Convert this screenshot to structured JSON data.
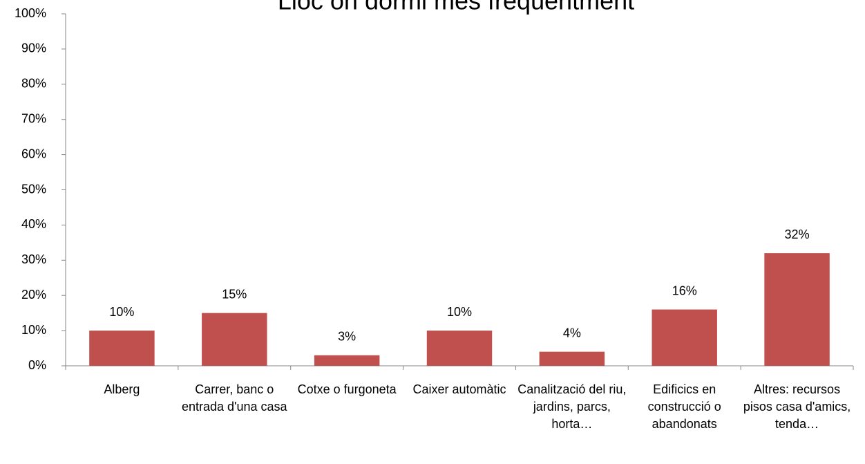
{
  "chart_data": {
    "type": "bar",
    "title": "Lloc on dormi més freqüentment",
    "categories": [
      "Alberg",
      "Carrer, banc o entrada d'una casa",
      "Cotxe o furgoneta",
      "Caixer automàtic",
      "Canalització del riu, jardins, parcs, horta…",
      "Edificics en construcció o abandonats",
      "Altres: recursos pisos casa d'amics, tenda…"
    ],
    "values": [
      10,
      15,
      3,
      10,
      4,
      16,
      32
    ],
    "value_labels": [
      "10%",
      "15%",
      "3%",
      "10%",
      "4%",
      "16%",
      "32%"
    ],
    "color": "#c0504d",
    "ylim": [
      0,
      100
    ],
    "yticks": [
      {
        "value": 0,
        "label": "0%"
      },
      {
        "value": 10,
        "label": "10%"
      },
      {
        "value": 20,
        "label": "20%"
      },
      {
        "value": 30,
        "label": "30%"
      },
      {
        "value": 40,
        "label": "40%"
      },
      {
        "value": 50,
        "label": "50%"
      },
      {
        "value": 60,
        "label": "60%"
      },
      {
        "value": 70,
        "label": "70%"
      },
      {
        "value": 80,
        "label": "80%"
      },
      {
        "value": 90,
        "label": "90%"
      },
      {
        "value": 100,
        "label": "100%"
      }
    ],
    "grid": false
  }
}
